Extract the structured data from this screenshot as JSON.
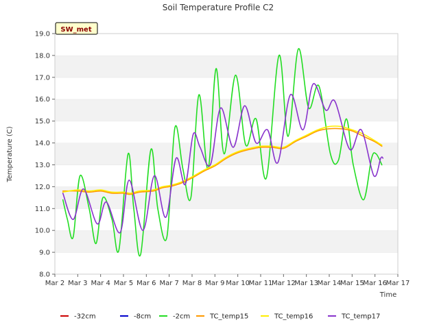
{
  "chart_data": {
    "type": "line",
    "title": "Soil Temperature Profile C2",
    "xlabel": "Time",
    "ylabel": "Temperature (C)",
    "badge": "SW_met",
    "x_range_days": [
      2,
      17
    ],
    "x_tick_days": [
      2,
      3,
      4,
      5,
      6,
      7,
      8,
      9,
      10,
      11,
      12,
      13,
      14,
      15,
      16,
      17
    ],
    "x_tick_labels": [
      "Mar 2",
      "Mar 3",
      "Mar 4",
      "Mar 5",
      "Mar 6",
      "Mar 7",
      "Mar 8",
      "Mar 9",
      "Mar 10",
      "Mar 11",
      "Mar 12",
      "Mar 13",
      "Mar 14",
      "Mar 15",
      "Mar 16",
      "Mar 17"
    ],
    "ylim": [
      8.0,
      19.0
    ],
    "y_ticks": [
      8.0,
      9.0,
      10.0,
      11.0,
      12.0,
      13.0,
      14.0,
      15.0,
      16.0,
      17.0,
      18.0,
      19.0
    ],
    "y_tick_labels": [
      "8.0",
      "9.0",
      "10.0",
      "11.0",
      "12.0",
      "13.0",
      "14.0",
      "15.0",
      "16.0",
      "17.0",
      "18.0",
      "19.0"
    ],
    "grid": "horizontal alternating bands",
    "legend_placement": "bottom",
    "series": [
      {
        "name": "-32cm",
        "color": "#cc0000",
        "x": [],
        "y": []
      },
      {
        "name": "-8cm",
        "color": "#0000cc",
        "x": [],
        "y": []
      },
      {
        "name": "-2cm",
        "color": "#22dd22",
        "x": [
          2.35,
          2.55,
          2.8,
          3.1,
          3.5,
          3.8,
          4.1,
          4.5,
          4.8,
          5.2,
          5.45,
          5.75,
          6.2,
          6.5,
          6.9,
          7.25,
          7.6,
          7.95,
          8.3,
          8.7,
          9.05,
          9.4,
          9.9,
          10.35,
          10.8,
          11.25,
          11.8,
          12.2,
          12.65,
          13.1,
          13.55,
          14.05,
          14.4,
          14.75,
          15.05,
          15.5,
          15.85,
          16.05,
          16.3
        ],
        "y": [
          11.4,
          10.5,
          9.7,
          12.5,
          11.0,
          9.4,
          11.5,
          10.5,
          9.1,
          13.5,
          11.0,
          8.9,
          13.7,
          11.0,
          9.7,
          14.7,
          12.8,
          11.5,
          16.2,
          12.8,
          17.4,
          13.5,
          17.1,
          13.9,
          15.1,
          12.4,
          18.0,
          14.3,
          18.3,
          15.6,
          16.6,
          13.5,
          13.2,
          15.1,
          13.0,
          11.4,
          13.3,
          13.5,
          13.0
        ]
      },
      {
        "name": "TC_temp15",
        "color": "#ff9900",
        "x": [
          2.35,
          3.0,
          3.5,
          4.0,
          4.5,
          5.0,
          5.3,
          5.7,
          6.3,
          6.7,
          7.0,
          7.5,
          8.0,
          8.5,
          9.0,
          9.5,
          10.0,
          10.5,
          11.0,
          11.5,
          12.0,
          12.5,
          13.0,
          13.5,
          14.0,
          14.5,
          15.0,
          15.5,
          16.0,
          16.3
        ],
        "y": [
          11.8,
          11.8,
          11.75,
          11.8,
          11.7,
          11.7,
          11.65,
          11.75,
          11.8,
          11.95,
          12.0,
          12.15,
          12.4,
          12.7,
          12.95,
          13.3,
          13.55,
          13.7,
          13.8,
          13.8,
          13.75,
          14.05,
          14.3,
          14.55,
          14.65,
          14.65,
          14.55,
          14.3,
          14.05,
          13.85
        ]
      },
      {
        "name": "TC_temp16",
        "color": "#ffee00",
        "x": [
          2.35,
          3.0,
          3.5,
          4.0,
          4.5,
          5.0,
          5.3,
          5.7,
          6.3,
          6.7,
          7.0,
          7.5,
          8.0,
          8.5,
          9.0,
          9.5,
          10.0,
          10.5,
          11.0,
          11.5,
          12.0,
          12.5,
          13.0,
          13.5,
          14.0,
          14.5,
          15.0,
          15.5,
          16.0,
          16.3
        ],
        "y": [
          11.75,
          11.85,
          11.8,
          11.85,
          11.75,
          11.75,
          11.7,
          11.8,
          11.85,
          12.0,
          12.05,
          12.2,
          12.45,
          12.75,
          13.0,
          13.35,
          13.6,
          13.75,
          13.85,
          13.85,
          13.8,
          14.1,
          14.35,
          14.6,
          14.75,
          14.75,
          14.6,
          14.4,
          14.1,
          13.9
        ]
      },
      {
        "name": "TC_temp17",
        "color": "#8833cc",
        "x": [
          2.35,
          2.8,
          3.25,
          3.85,
          4.25,
          4.85,
          5.25,
          5.85,
          6.35,
          6.85,
          7.3,
          7.7,
          8.05,
          8.35,
          8.8,
          9.25,
          9.8,
          10.3,
          10.8,
          11.3,
          11.75,
          12.3,
          12.85,
          13.3,
          13.85,
          14.25,
          14.9,
          15.4,
          15.95,
          16.25,
          16.35
        ],
        "y": [
          11.7,
          10.5,
          11.9,
          10.3,
          11.3,
          9.9,
          12.3,
          10.0,
          12.5,
          10.6,
          13.3,
          12.1,
          14.4,
          13.8,
          13.0,
          15.6,
          13.8,
          15.7,
          14.0,
          14.6,
          13.1,
          16.2,
          14.6,
          16.7,
          15.5,
          15.9,
          13.7,
          14.6,
          12.5,
          13.3,
          13.3
        ]
      }
    ]
  }
}
